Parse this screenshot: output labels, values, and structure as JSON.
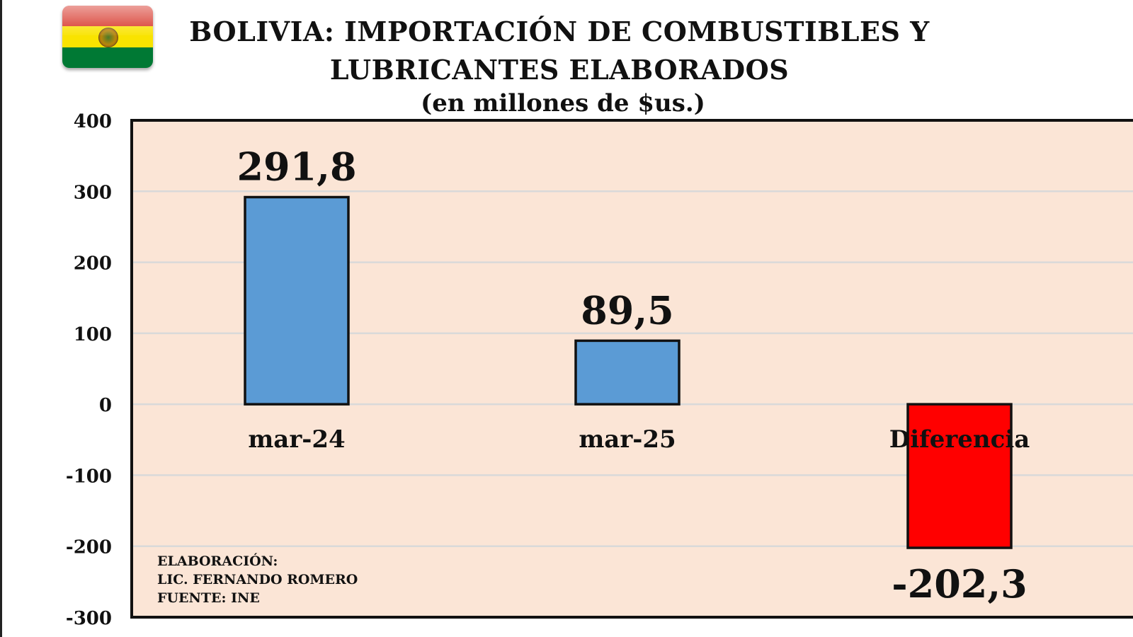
{
  "colors": {
    "flag_red": "#d52b1e",
    "flag_yellow": "#f9e300",
    "flag_green": "#007934",
    "plot_background": "#fbe5d6",
    "positive_bar": "#5b9bd5",
    "negative_bar": "#ff0000",
    "gridline": "#d9d9d9"
  },
  "header": {
    "flag_icon": "bolivia-flag-icon",
    "title_line1": "BOLIVIA: IMPORTACIÓN DE COMBUSTIBLES Y",
    "title_line2": "LUBRICANTES ELABORADOS",
    "subtitle": "(en millones de $us.)"
  },
  "credits": {
    "line1": "ELABORACIÓN:",
    "line2": "LIC. FERNANDO ROMERO",
    "line3": "FUENTE: INE"
  },
  "chart_data": {
    "type": "bar",
    "title": "BOLIVIA: IMPORTACIÓN DE COMBUSTIBLES Y LUBRICANTES ELABORADOS",
    "subtitle": "(en millones de $us.)",
    "categories": [
      "mar-24",
      "mar-25",
      "Diferencia"
    ],
    "values": [
      291.8,
      89.5,
      -202.3
    ],
    "data_labels": [
      "291,8",
      "89,5",
      "-202,3"
    ],
    "ylim": [
      -300,
      400
    ],
    "yticks": [
      400,
      300,
      200,
      100,
      0,
      -100,
      -200,
      -300
    ],
    "ytick_labels": [
      "400",
      "300",
      "200",
      "100",
      "0",
      "-100",
      "-200",
      "-300"
    ],
    "grid": true,
    "legend": "none"
  }
}
